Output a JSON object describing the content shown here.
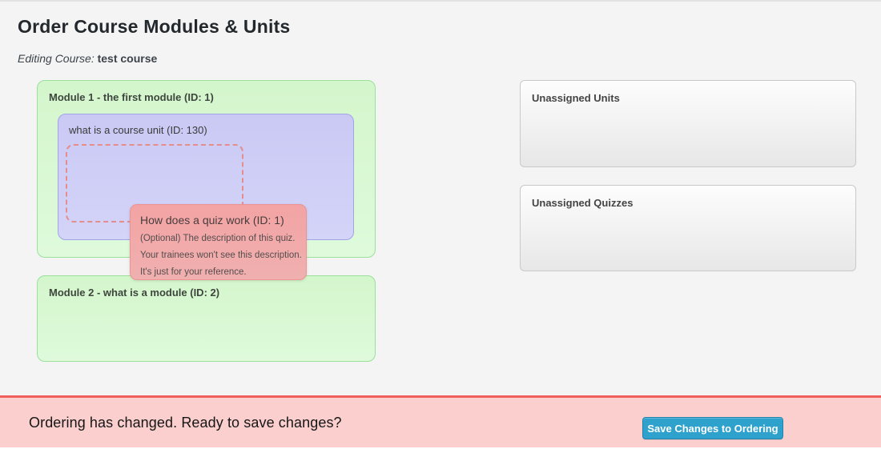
{
  "page": {
    "title": "Order Course Modules & Units",
    "subtitle_label": "Editing Course:",
    "subtitle_value": "test course"
  },
  "modules": [
    {
      "title": "Module 1 - the first module (ID: 1)",
      "units": [
        {
          "title": "what is a course unit (ID: 130)"
        }
      ]
    },
    {
      "title": "Module 2 - what is a module (ID: 2)",
      "units": []
    }
  ],
  "drag_item": {
    "title": "How does a quiz work (ID: 1)",
    "description_lines": [
      "(Optional) The description of this quiz.",
      "Your trainees won't see this description.",
      "It's just for your reference."
    ]
  },
  "unassigned": {
    "units_title": "Unassigned Units",
    "quizzes_title": "Unassigned Quizzes"
  },
  "save_bar": {
    "message": "Ordering has changed. Ready to save changes?",
    "button_label": "Save Changes to Ordering"
  },
  "colors": {
    "page_background": "#f4f4f4",
    "module_background": "#d4f6cc",
    "module_border": "#9be09b",
    "unit_background": "#c9c9f4",
    "unit_border": "#a3a3ec",
    "quiz_background": "#f3a3a3",
    "quiz_border": "#ec9393",
    "placeholder_border": "#e58d8d",
    "unassigned_border": "#c9c9c9",
    "save_bar_background": "#fccfcf",
    "save_bar_border": "#f15e5e",
    "save_button_background": "#2ea2cc",
    "save_button_border": "#1f83ab"
  }
}
